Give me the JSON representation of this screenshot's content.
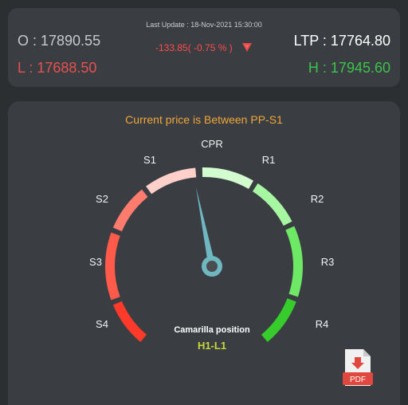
{
  "quote": {
    "last_update": "Last Update : 18-Nov-2021 15:30:00",
    "open": "O : 17890.55",
    "low": "L : 17688.50",
    "ltp": "LTP : 17764.80",
    "high": "H : 17945.60",
    "change": "-133.85( -0.75 % )",
    "trend_icon": "triangle-down-icon"
  },
  "gauge": {
    "title": "Current price is Between PP-S1",
    "zones": [
      "S4",
      "S3",
      "S2",
      "S1",
      "CPR",
      "R1",
      "R2",
      "R3",
      "R4"
    ],
    "needle_zone": "S1",
    "camarilla_label": "Camarilla position",
    "camarilla_value": "H1-L1"
  },
  "pdf": {
    "label": "PDF",
    "icon": "pdf-file-icon"
  },
  "colors": {
    "background": "#2c2f32",
    "card": "#3a3e42",
    "title": "#f0a73a",
    "down": "#ff4c4c",
    "up": "#3bc44a",
    "needle": "#6fb8c2"
  }
}
